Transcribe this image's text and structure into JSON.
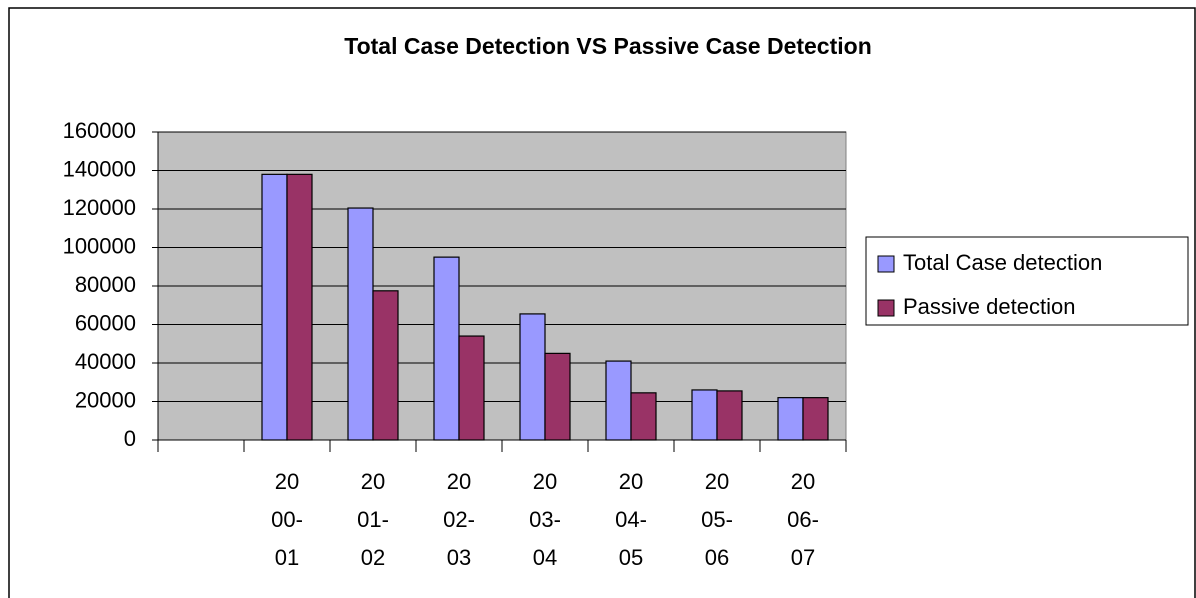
{
  "chart_data": {
    "type": "bar",
    "title": "Total Case Detection VS Passive Case Detection",
    "categories": [
      null,
      "2000-01",
      "2001-02",
      "2002-03",
      "2003-04",
      "2004-05",
      "2005-06",
      "2006-07"
    ],
    "series": [
      {
        "name": "Total Case detection",
        "color": "#9999ff",
        "values": [
          null,
          138000,
          120500,
          95000,
          65500,
          41000,
          26000,
          22000
        ]
      },
      {
        "name": "Passive detection",
        "color": "#993366",
        "values": [
          null,
          138000,
          77500,
          54000,
          45000,
          24500,
          25500,
          22000
        ]
      }
    ],
    "ylim": [
      0,
      160000
    ],
    "yticks": [
      0,
      20000,
      40000,
      60000,
      80000,
      100000,
      120000,
      140000,
      160000
    ],
    "grid": true,
    "legend": "right"
  }
}
